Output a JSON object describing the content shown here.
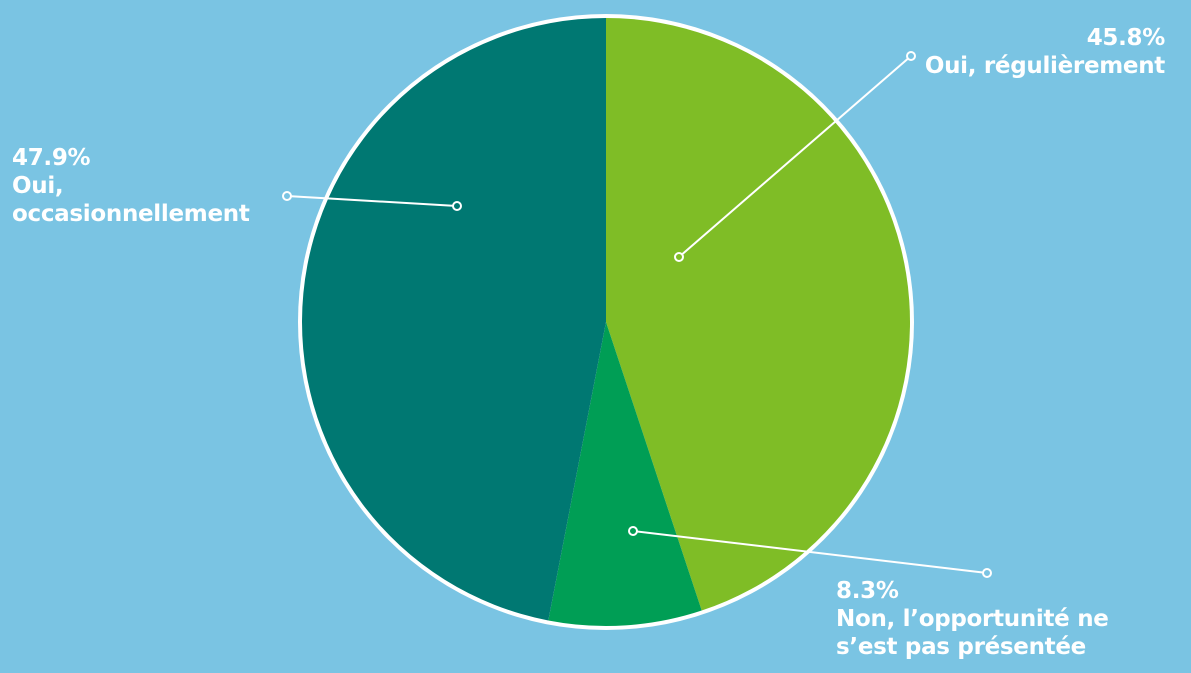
{
  "chart_data": {
    "type": "pie",
    "title": "",
    "slices": [
      {
        "label": "Oui, régulièrement",
        "value": 45.8,
        "value_label": "45.8%",
        "color": "#7FBD26"
      },
      {
        "label": "Non, l’opportunité ne s’est pas présentée",
        "value": 8.3,
        "value_label": "8.3%",
        "color": "#009E55"
      },
      {
        "label": "Oui, occasionnellement",
        "value": 47.9,
        "value_label": "47.9%",
        "color": "#007872"
      }
    ],
    "start": "top",
    "direction": "clockwise",
    "border_color": "#FFFFFF",
    "background_color": "#7AC4E3"
  }
}
